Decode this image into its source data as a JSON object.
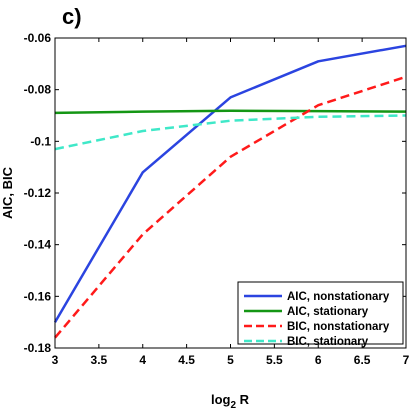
{
  "panel_label": "c)",
  "chart_data": {
    "type": "line",
    "xlabel": "log",
    "xlabel_sub": "2",
    "xlabel_suffix": " R",
    "ylabel": "AIC, BIC",
    "xlim": [
      3,
      7
    ],
    "ylim": [
      -0.18,
      -0.06
    ],
    "xticks": [
      3,
      3.5,
      4,
      4.5,
      5,
      5.5,
      6,
      6.5,
      7
    ],
    "xtick_labels": [
      "3",
      "3.5",
      "4",
      "4.5",
      "5",
      "5.5",
      "6",
      "6.5",
      "7"
    ],
    "yticks": [
      -0.18,
      -0.16,
      -0.14,
      -0.12,
      -0.1,
      -0.08,
      -0.06
    ],
    "ytick_labels": [
      "-0.18",
      "-0.16",
      "-0.14",
      "-0.12",
      "-0.1",
      "-0.08",
      "-0.06"
    ],
    "grid": false,
    "legend_position": "bottom-right",
    "x": [
      3,
      4,
      5,
      6,
      7
    ],
    "series": [
      {
        "name": "AIC, nonstationary",
        "values": [
          -0.17,
          -0.112,
          -0.083,
          -0.069,
          -0.063
        ],
        "color": "#2b44e0",
        "dash": "solid"
      },
      {
        "name": "AIC, stationary",
        "values": [
          -0.089,
          -0.0885,
          -0.0882,
          -0.0883,
          -0.0885
        ],
        "color": "#149614",
        "dash": "solid"
      },
      {
        "name": "BIC, nonstationary",
        "values": [
          -0.176,
          -0.136,
          -0.106,
          -0.086,
          -0.075
        ],
        "color": "#ff1a1a",
        "dash": "dashed"
      },
      {
        "name": "BIC, stationary",
        "values": [
          -0.103,
          -0.096,
          -0.092,
          -0.0905,
          -0.09
        ],
        "color": "#3fe8c8",
        "dash": "dashed"
      }
    ]
  }
}
